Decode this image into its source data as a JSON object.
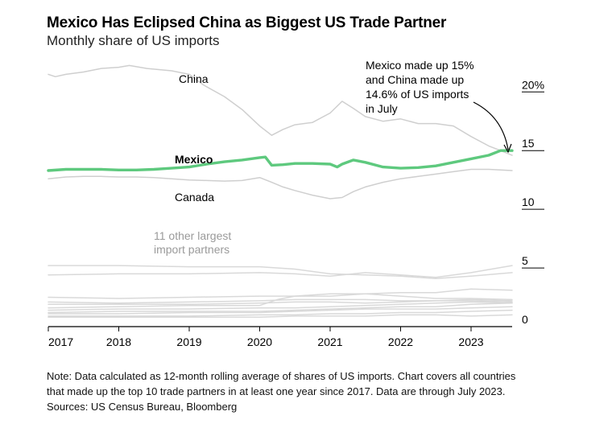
{
  "chart_data": {
    "type": "line",
    "title": "Mexico Has Eclipsed China as Biggest US Trade Partner",
    "subtitle": "Monthly share of US imports",
    "x_ticks": [
      "2017",
      "2018",
      "2019",
      "2020",
      "2021",
      "2022",
      "2023"
    ],
    "y_ticks": [
      "0",
      "5",
      "10",
      "15",
      "20%"
    ],
    "y_tick_values": [
      0,
      5,
      10,
      15,
      20
    ],
    "ylim": [
      0,
      21.8
    ],
    "xlim": [
      2017.0,
      2023.583
    ],
    "grid": false,
    "series": [
      {
        "name": "Mexico",
        "color": "#5ec97e",
        "highlight": true,
        "x": [
          2017.0,
          2017.25,
          2017.5,
          2017.75,
          2018.0,
          2018.25,
          2018.5,
          2018.75,
          2019.0,
          2019.25,
          2019.5,
          2019.75,
          2020.0,
          2020.08,
          2020.17,
          2020.33,
          2020.5,
          2020.75,
          2021.0,
          2021.1,
          2021.17,
          2021.33,
          2021.5,
          2021.75,
          2022.0,
          2022.25,
          2022.5,
          2022.75,
          2023.0,
          2023.25,
          2023.42,
          2023.583
        ],
        "y": [
          13.3,
          13.4,
          13.4,
          13.4,
          13.35,
          13.35,
          13.4,
          13.5,
          13.6,
          13.85,
          14.05,
          14.2,
          14.4,
          14.45,
          13.75,
          13.8,
          13.9,
          13.9,
          13.85,
          13.6,
          13.85,
          14.2,
          14.0,
          13.6,
          13.5,
          13.55,
          13.7,
          14.0,
          14.3,
          14.6,
          15.0,
          15.0
        ]
      },
      {
        "name": "China",
        "color": "#cfcfcf",
        "x": [
          2017.0,
          2017.1,
          2017.25,
          2017.5,
          2017.75,
          2018.0,
          2018.15,
          2018.4,
          2018.75,
          2019.0,
          2019.2,
          2019.5,
          2019.75,
          2020.0,
          2020.17,
          2020.33,
          2020.5,
          2020.75,
          2021.0,
          2021.17,
          2021.33,
          2021.5,
          2021.75,
          2022.0,
          2022.25,
          2022.5,
          2022.75,
          2023.0,
          2023.25,
          2023.42,
          2023.583
        ],
        "y": [
          21.5,
          21.3,
          21.5,
          21.7,
          22.0,
          22.1,
          22.25,
          22.0,
          21.8,
          21.5,
          20.6,
          19.6,
          18.5,
          17.1,
          16.3,
          16.8,
          17.2,
          17.4,
          18.2,
          19.2,
          18.6,
          17.9,
          17.5,
          17.7,
          17.3,
          17.3,
          17.1,
          16.2,
          15.4,
          15.0,
          14.6
        ]
      },
      {
        "name": "Canada",
        "color": "#cfcfcf",
        "x": [
          2017.0,
          2017.25,
          2017.5,
          2017.75,
          2018.0,
          2018.25,
          2018.5,
          2018.75,
          2019.0,
          2019.25,
          2019.5,
          2019.75,
          2020.0,
          2020.17,
          2020.33,
          2020.5,
          2020.75,
          2021.0,
          2021.17,
          2021.33,
          2021.5,
          2021.75,
          2022.0,
          2022.25,
          2022.5,
          2022.75,
          2023.0,
          2023.25,
          2023.583
        ],
        "y": [
          12.6,
          12.75,
          12.8,
          12.8,
          12.75,
          12.75,
          12.7,
          12.6,
          12.5,
          12.45,
          12.4,
          12.45,
          12.7,
          12.3,
          11.9,
          11.6,
          11.2,
          10.9,
          11.0,
          11.5,
          11.9,
          12.3,
          12.6,
          12.8,
          13.0,
          13.2,
          13.4,
          13.4,
          13.3
        ]
      },
      {
        "name": "Other 1",
        "color": "#d9d9d9",
        "x": [
          2017.0,
          2018.0,
          2019.0,
          2020.0,
          2020.5,
          2021.0,
          2021.5,
          2022.0,
          2022.5,
          2023.0,
          2023.583
        ],
        "y": [
          5.2,
          5.2,
          5.1,
          5.1,
          4.9,
          4.5,
          4.4,
          4.3,
          4.1,
          4.3,
          4.6
        ]
      },
      {
        "name": "Other 2",
        "color": "#d9d9d9",
        "x": [
          2017.0,
          2018.0,
          2019.0,
          2020.0,
          2020.5,
          2021.0,
          2021.5,
          2022.0,
          2022.5,
          2023.0,
          2023.583
        ],
        "y": [
          4.4,
          4.5,
          4.5,
          4.6,
          4.5,
          4.3,
          4.6,
          4.4,
          4.2,
          4.6,
          5.2
        ]
      },
      {
        "name": "Other 3",
        "color": "#d9d9d9",
        "x": [
          2017.0,
          2018.0,
          2019.0,
          2020.0,
          2020.5,
          2021.0,
          2021.5,
          2022.0,
          2022.5,
          2023.0,
          2023.583
        ],
        "y": [
          2.5,
          2.4,
          2.5,
          2.6,
          2.6,
          2.6,
          2.8,
          2.9,
          2.9,
          3.2,
          3.1
        ]
      },
      {
        "name": "Other 4",
        "color": "#d9d9d9",
        "x": [
          2017.0,
          2018.0,
          2019.0,
          2020.0,
          2020.5,
          2021.0,
          2021.5,
          2022.0,
          2022.5,
          2023.0,
          2023.583
        ],
        "y": [
          2.1,
          2.0,
          2.1,
          2.2,
          2.3,
          2.3,
          2.3,
          2.2,
          2.2,
          2.2,
          2.1
        ]
      },
      {
        "name": "Other 5",
        "color": "#d9d9d9",
        "x": [
          2017.0,
          2018.0,
          2019.0,
          2020.0,
          2020.25,
          2020.5,
          2021.0,
          2021.5,
          2022.0,
          2022.5,
          2023.0,
          2023.583
        ],
        "y": [
          1.6,
          1.7,
          1.8,
          1.8,
          2.3,
          2.6,
          2.8,
          2.8,
          2.6,
          2.4,
          2.4,
          2.3
        ]
      },
      {
        "name": "Other 6",
        "color": "#d9d9d9",
        "x": [
          2017.0,
          2018.0,
          2019.0,
          2020.0,
          2020.5,
          2021.0,
          2021.5,
          2022.0,
          2022.5,
          2023.0,
          2023.583
        ],
        "y": [
          1.9,
          1.9,
          1.9,
          2.0,
          2.1,
          2.1,
          2.0,
          2.1,
          2.2,
          2.3,
          2.2
        ]
      },
      {
        "name": "Other 7",
        "color": "#d9d9d9",
        "x": [
          2017.0,
          2018.0,
          2019.0,
          2020.0,
          2020.5,
          2021.0,
          2021.5,
          2022.0,
          2022.5,
          2023.0,
          2023.583
        ],
        "y": [
          1.4,
          1.5,
          1.5,
          1.6,
          1.6,
          1.7,
          1.8,
          1.9,
          2.0,
          2.1,
          2.0
        ]
      },
      {
        "name": "Other 8",
        "color": "#d9d9d9",
        "x": [
          2017.0,
          2018.0,
          2019.0,
          2020.0,
          2020.5,
          2021.0,
          2021.5,
          2022.0,
          2022.5,
          2023.0,
          2023.583
        ],
        "y": [
          1.2,
          1.3,
          1.3,
          1.3,
          1.4,
          1.5,
          1.6,
          1.7,
          1.7,
          1.9,
          2.0
        ]
      },
      {
        "name": "Other 9",
        "color": "#d9d9d9",
        "x": [
          2017.0,
          2018.0,
          2019.0,
          2020.0,
          2020.5,
          2021.0,
          2021.5,
          2022.0,
          2022.5,
          2023.0,
          2023.583
        ],
        "y": [
          1.1,
          1.1,
          1.2,
          1.2,
          1.3,
          1.4,
          1.5,
          1.5,
          1.5,
          1.6,
          1.7
        ]
      },
      {
        "name": "Other 10",
        "color": "#d9d9d9",
        "x": [
          2017.0,
          2018.0,
          2019.0,
          2020.0,
          2020.5,
          2021.0,
          2021.5,
          2022.0,
          2022.5,
          2023.0,
          2023.583
        ],
        "y": [
          0.9,
          0.9,
          0.9,
          1.0,
          1.0,
          1.1,
          1.1,
          1.2,
          1.2,
          1.3,
          1.4
        ]
      },
      {
        "name": "Other 11",
        "color": "#d9d9d9",
        "x": [
          2017.0,
          2018.0,
          2019.0,
          2020.0,
          2020.5,
          2021.0,
          2021.5,
          2022.0,
          2022.5,
          2023.0,
          2023.583
        ],
        "y": [
          0.8,
          0.8,
          0.8,
          0.8,
          0.9,
          0.9,
          0.9,
          1.0,
          1.0,
          0.9,
          1.0
        ]
      }
    ],
    "labels": {
      "china": "China",
      "mexico": "Mexico",
      "canada": "Canada",
      "others_line1": "11 other largest",
      "others_line2": "import partners"
    },
    "annotation": {
      "lines": [
        "Mexico made up 15%",
        "and China made up",
        "14.6% of US imports",
        "in July"
      ]
    }
  },
  "notes": {
    "line1": "Note: Data calculated as 12-month rolling average of shares of US imports. Chart covers all countries",
    "line2": "that made up the top 10 trade partners in at least one year since 2017. Data are through July 2023.",
    "line3": "Sources: US Census Bureau, Bloomberg"
  }
}
